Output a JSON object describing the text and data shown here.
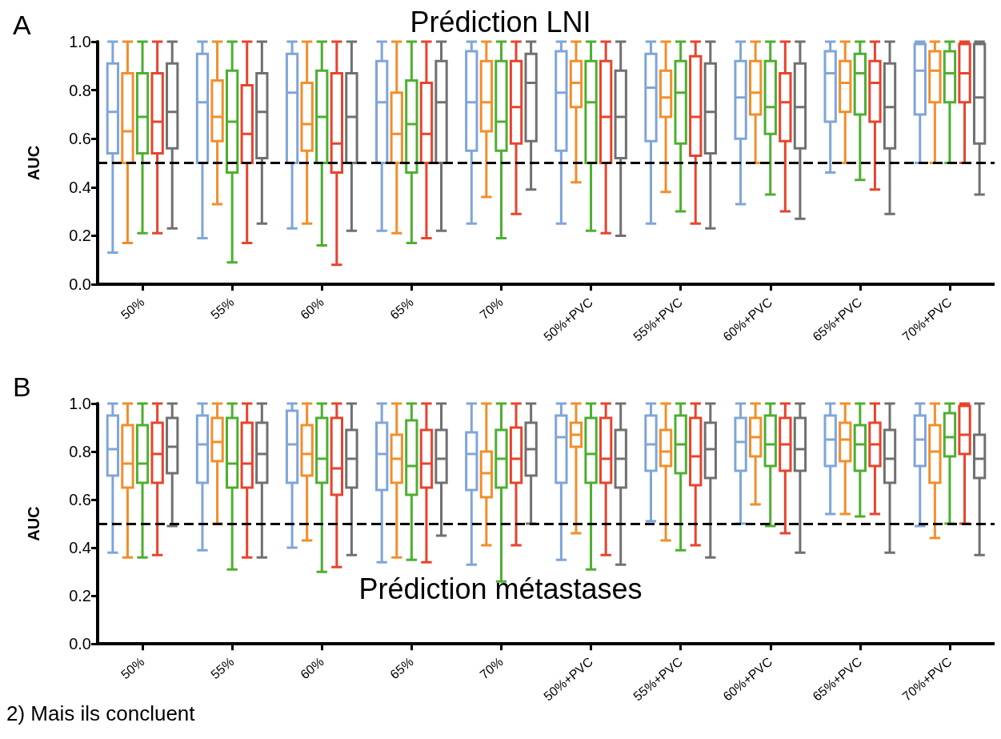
{
  "chart_data": [
    {
      "type": "box",
      "title": "Prédiction LNI",
      "ylabel": "AUC",
      "annotations": [
        "A"
      ],
      "categories": [
        "50%",
        "55%",
        "60%",
        "65%",
        "70%",
        "50%+PVC",
        "55%+PVC",
        "60%+PVC",
        "65%+PVC",
        "70%+PVC"
      ],
      "ylim": [
        0,
        1
      ],
      "yticks": [
        {
          "value": 0,
          "label": "0.0"
        },
        {
          "value": 0.2,
          "label": "0.2"
        },
        {
          "value": 0.4,
          "label": "0.4"
        },
        {
          "value": 0.6,
          "label": "0.6"
        },
        {
          "value": 0.8,
          "label": "0.8"
        },
        {
          "value": 1,
          "label": "1.0"
        }
      ],
      "grid": false,
      "ref_lines": [
        {
          "axis": "y",
          "value": 0.5,
          "color": "#000000",
          "line_style": "dashed"
        }
      ],
      "series": [
        {
          "color": "#7fa5d9",
          "boxes": [
            {
              "low": 0.13,
              "q1": 0.54,
              "median": 0.71,
              "q3": 0.91,
              "high": 1
            },
            {
              "low": 0.19,
              "q1": 0.5,
              "median": 0.75,
              "q3": 0.95,
              "high": 1
            },
            {
              "low": 0.23,
              "q1": 0.5,
              "median": 0.79,
              "q3": 0.95,
              "high": 1
            },
            {
              "low": 0.22,
              "q1": 0.5,
              "median": 0.75,
              "q3": 0.92,
              "high": 1
            },
            {
              "low": 0.25,
              "q1": 0.55,
              "median": 0.75,
              "q3": 0.96,
              "high": 1
            },
            {
              "low": 0.25,
              "q1": 0.55,
              "median": 0.79,
              "q3": 0.96,
              "high": 1
            },
            {
              "low": 0.25,
              "q1": 0.59,
              "median": 0.81,
              "q3": 0.95,
              "high": 1
            },
            {
              "low": 0.33,
              "q1": 0.6,
              "median": 0.77,
              "q3": 0.92,
              "high": 1
            },
            {
              "low": 0.46,
              "q1": 0.67,
              "median": 0.87,
              "q3": 0.96,
              "high": 1
            },
            {
              "low": 0.5,
              "q1": 0.7,
              "median": 0.88,
              "q3": 0.99,
              "high": 1
            }
          ]
        },
        {
          "color": "#f28e2b",
          "boxes": [
            {
              "low": 0.17,
              "q1": 0.5,
              "median": 0.63,
              "q3": 0.87,
              "high": 1
            },
            {
              "low": 0.33,
              "q1": 0.59,
              "median": 0.69,
              "q3": 0.84,
              "high": 1
            },
            {
              "low": 0.25,
              "q1": 0.55,
              "median": 0.66,
              "q3": 0.83,
              "high": 1
            },
            {
              "low": 0.21,
              "q1": 0.5,
              "median": 0.62,
              "q3": 0.79,
              "high": 1
            },
            {
              "low": 0.36,
              "q1": 0.63,
              "median": 0.75,
              "q3": 0.92,
              "high": 1
            },
            {
              "low": 0.42,
              "q1": 0.73,
              "median": 0.83,
              "q3": 0.92,
              "high": 1
            },
            {
              "low": 0.38,
              "q1": 0.69,
              "median": 0.77,
              "q3": 0.88,
              "high": 1
            },
            {
              "low": 0.5,
              "q1": 0.7,
              "median": 0.79,
              "q3": 0.92,
              "high": 1
            },
            {
              "low": 0.5,
              "q1": 0.71,
              "median": 0.83,
              "q3": 0.92,
              "high": 1
            },
            {
              "low": 0.5,
              "q1": 0.75,
              "median": 0.88,
              "q3": 0.96,
              "high": 1
            }
          ]
        },
        {
          "color": "#4daf30",
          "boxes": [
            {
              "low": 0.21,
              "q1": 0.54,
              "median": 0.69,
              "q3": 0.87,
              "high": 1
            },
            {
              "low": 0.09,
              "q1": 0.46,
              "median": 0.67,
              "q3": 0.88,
              "high": 1
            },
            {
              "low": 0.16,
              "q1": 0.5,
              "median": 0.69,
              "q3": 0.88,
              "high": 1
            },
            {
              "low": 0.17,
              "q1": 0.46,
              "median": 0.66,
              "q3": 0.84,
              "high": 1
            },
            {
              "low": 0.19,
              "q1": 0.55,
              "median": 0.67,
              "q3": 0.92,
              "high": 1
            },
            {
              "low": 0.22,
              "q1": 0.5,
              "median": 0.75,
              "q3": 0.92,
              "high": 1
            },
            {
              "low": 0.3,
              "q1": 0.58,
              "median": 0.79,
              "q3": 0.92,
              "high": 1
            },
            {
              "low": 0.37,
              "q1": 0.62,
              "median": 0.73,
              "q3": 0.92,
              "high": 1
            },
            {
              "low": 0.43,
              "q1": 0.7,
              "median": 0.87,
              "q3": 0.95,
              "high": 1
            },
            {
              "low": 0.5,
              "q1": 0.75,
              "median": 0.87,
              "q3": 0.96,
              "high": 1
            }
          ]
        },
        {
          "color": "#e8432d",
          "boxes": [
            {
              "low": 0.21,
              "q1": 0.54,
              "median": 0.67,
              "q3": 0.87,
              "high": 1
            },
            {
              "low": 0.17,
              "q1": 0.5,
              "median": 0.62,
              "q3": 0.82,
              "high": 1
            },
            {
              "low": 0.08,
              "q1": 0.46,
              "median": 0.58,
              "q3": 0.87,
              "high": 1
            },
            {
              "low": 0.19,
              "q1": 0.5,
              "median": 0.62,
              "q3": 0.83,
              "high": 1
            },
            {
              "low": 0.29,
              "q1": 0.58,
              "median": 0.73,
              "q3": 0.92,
              "high": 1
            },
            {
              "low": 0.21,
              "q1": 0.5,
              "median": 0.69,
              "q3": 0.92,
              "high": 1
            },
            {
              "low": 0.25,
              "q1": 0.53,
              "median": 0.69,
              "q3": 0.94,
              "high": 1
            },
            {
              "low": 0.3,
              "q1": 0.59,
              "median": 0.75,
              "q3": 0.87,
              "high": 1
            },
            {
              "low": 0.39,
              "q1": 0.67,
              "median": 0.83,
              "q3": 0.92,
              "high": 1
            },
            {
              "low": 0.5,
              "q1": 0.75,
              "median": 0.87,
              "q3": 0.99,
              "high": 1
            }
          ]
        },
        {
          "color": "#707070",
          "boxes": [
            {
              "low": 0.23,
              "q1": 0.56,
              "median": 0.71,
              "q3": 0.91,
              "high": 1
            },
            {
              "low": 0.25,
              "q1": 0.52,
              "median": 0.71,
              "q3": 0.87,
              "high": 1
            },
            {
              "low": 0.22,
              "q1": 0.5,
              "median": 0.69,
              "q3": 0.87,
              "high": 1
            },
            {
              "low": 0.22,
              "q1": 0.5,
              "median": 0.75,
              "q3": 0.92,
              "high": 1
            },
            {
              "low": 0.39,
              "q1": 0.59,
              "median": 0.83,
              "q3": 0.95,
              "high": 1
            },
            {
              "low": 0.2,
              "q1": 0.52,
              "median": 0.69,
              "q3": 0.88,
              "high": 1
            },
            {
              "low": 0.23,
              "q1": 0.54,
              "median": 0.71,
              "q3": 0.91,
              "high": 1
            },
            {
              "low": 0.27,
              "q1": 0.56,
              "median": 0.73,
              "q3": 0.91,
              "high": 1
            },
            {
              "low": 0.29,
              "q1": 0.56,
              "median": 0.73,
              "q3": 0.91,
              "high": 1
            },
            {
              "low": 0.37,
              "q1": 0.58,
              "median": 0.77,
              "q3": 0.99,
              "high": 1
            }
          ]
        }
      ]
    },
    {
      "type": "box",
      "title": "Prédiction métastases",
      "ylabel": "AUC",
      "annotations": [
        "B",
        "2) Mais ils concluent"
      ],
      "categories": [
        "50%",
        "55%",
        "60%",
        "65%",
        "70%",
        "50%+PVC",
        "55%+PVC",
        "60%+PVC",
        "65%+PVC",
        "70%+PVC"
      ],
      "ylim": [
        0,
        1
      ],
      "yticks": [
        {
          "value": 0,
          "label": "0.0"
        },
        {
          "value": 0.2,
          "label": "0.2"
        },
        {
          "value": 0.4,
          "label": "0.4"
        },
        {
          "value": 0.6,
          "label": "0.6"
        },
        {
          "value": 0.8,
          "label": "0.8"
        },
        {
          "value": 1,
          "label": "1.0"
        }
      ],
      "grid": false,
      "ref_lines": [
        {
          "axis": "y",
          "value": 0.5,
          "color": "#000000",
          "line_style": "dashed"
        }
      ],
      "series": [
        {
          "color": "#7fa5d9",
          "boxes": [
            {
              "low": 0.38,
              "q1": 0.7,
              "median": 0.81,
              "q3": 0.95,
              "high": 1
            },
            {
              "low": 0.39,
              "q1": 0.67,
              "median": 0.83,
              "q3": 0.95,
              "high": 1
            },
            {
              "low": 0.4,
              "q1": 0.67,
              "median": 0.83,
              "q3": 0.97,
              "high": 1
            },
            {
              "low": 0.34,
              "q1": 0.64,
              "median": 0.79,
              "q3": 0.92,
              "high": 1
            },
            {
              "low": 0.33,
              "q1": 0.64,
              "median": 0.79,
              "q3": 0.88,
              "high": 1
            },
            {
              "low": 0.35,
              "q1": 0.67,
              "median": 0.86,
              "q3": 0.95,
              "high": 1
            },
            {
              "low": 0.51,
              "q1": 0.72,
              "median": 0.83,
              "q3": 0.95,
              "high": 1
            },
            {
              "low": 0.5,
              "q1": 0.72,
              "median": 0.84,
              "q3": 0.94,
              "high": 1
            },
            {
              "low": 0.54,
              "q1": 0.74,
              "median": 0.85,
              "q3": 0.95,
              "high": 1
            },
            {
              "low": 0.49,
              "q1": 0.74,
              "median": 0.85,
              "q3": 0.95,
              "high": 1
            }
          ]
        },
        {
          "color": "#f28e2b",
          "boxes": [
            {
              "low": 0.36,
              "q1": 0.65,
              "median": 0.75,
              "q3": 0.91,
              "high": 1
            },
            {
              "low": 0.5,
              "q1": 0.76,
              "median": 0.84,
              "q3": 0.94,
              "high": 1
            },
            {
              "low": 0.43,
              "q1": 0.7,
              "median": 0.79,
              "q3": 0.91,
              "high": 1
            },
            {
              "low": 0.36,
              "q1": 0.67,
              "median": 0.77,
              "q3": 0.87,
              "high": 1
            },
            {
              "low": 0.41,
              "q1": 0.61,
              "median": 0.71,
              "q3": 0.8,
              "high": 1
            },
            {
              "low": 0.46,
              "q1": 0.82,
              "median": 0.87,
              "q3": 0.92,
              "high": 1
            },
            {
              "low": 0.43,
              "q1": 0.74,
              "median": 0.8,
              "q3": 0.89,
              "high": 1
            },
            {
              "low": 0.58,
              "q1": 0.78,
              "median": 0.86,
              "q3": 0.94,
              "high": 1
            },
            {
              "low": 0.54,
              "q1": 0.76,
              "median": 0.85,
              "q3": 0.92,
              "high": 1
            },
            {
              "low": 0.44,
              "q1": 0.67,
              "median": 0.8,
              "q3": 0.91,
              "high": 1
            }
          ]
        },
        {
          "color": "#4daf30",
          "boxes": [
            {
              "low": 0.36,
              "q1": 0.67,
              "median": 0.75,
              "q3": 0.91,
              "high": 1
            },
            {
              "low": 0.31,
              "q1": 0.65,
              "median": 0.75,
              "q3": 0.94,
              "high": 1
            },
            {
              "low": 0.3,
              "q1": 0.67,
              "median": 0.77,
              "q3": 0.94,
              "high": 1
            },
            {
              "low": 0.35,
              "q1": 0.62,
              "median": 0.74,
              "q3": 0.93,
              "high": 1
            },
            {
              "low": 0.26,
              "q1": 0.65,
              "median": 0.77,
              "q3": 0.89,
              "high": 1
            },
            {
              "low": 0.31,
              "q1": 0.67,
              "median": 0.79,
              "q3": 0.94,
              "high": 1
            },
            {
              "low": 0.39,
              "q1": 0.71,
              "median": 0.83,
              "q3": 0.95,
              "high": 1
            },
            {
              "low": 0.49,
              "q1": 0.74,
              "median": 0.83,
              "q3": 0.95,
              "high": 1
            },
            {
              "low": 0.53,
              "q1": 0.72,
              "median": 0.83,
              "q3": 0.91,
              "high": 1
            },
            {
              "low": 0.5,
              "q1": 0.78,
              "median": 0.86,
              "q3": 0.96,
              "high": 1
            }
          ]
        },
        {
          "color": "#e8432d",
          "boxes": [
            {
              "low": 0.37,
              "q1": 0.67,
              "median": 0.79,
              "q3": 0.92,
              "high": 1
            },
            {
              "low": 0.36,
              "q1": 0.65,
              "median": 0.75,
              "q3": 0.92,
              "high": 1
            },
            {
              "low": 0.32,
              "q1": 0.62,
              "median": 0.73,
              "q3": 0.94,
              "high": 1
            },
            {
              "low": 0.34,
              "q1": 0.65,
              "median": 0.75,
              "q3": 0.89,
              "high": 1
            },
            {
              "low": 0.41,
              "q1": 0.67,
              "median": 0.77,
              "q3": 0.9,
              "high": 1
            },
            {
              "low": 0.37,
              "q1": 0.67,
              "median": 0.77,
              "q3": 0.94,
              "high": 1
            },
            {
              "low": 0.41,
              "q1": 0.66,
              "median": 0.78,
              "q3": 0.94,
              "high": 1
            },
            {
              "low": 0.46,
              "q1": 0.72,
              "median": 0.83,
              "q3": 0.94,
              "high": 1
            },
            {
              "low": 0.54,
              "q1": 0.74,
              "median": 0.83,
              "q3": 0.92,
              "high": 1
            },
            {
              "low": 0.5,
              "q1": 0.79,
              "median": 0.87,
              "q3": 0.99,
              "high": 1
            }
          ]
        },
        {
          "color": "#707070",
          "boxes": [
            {
              "low": 0.49,
              "q1": 0.71,
              "median": 0.82,
              "q3": 0.94,
              "high": 1
            },
            {
              "low": 0.36,
              "q1": 0.67,
              "median": 0.79,
              "q3": 0.92,
              "high": 1
            },
            {
              "low": 0.37,
              "q1": 0.65,
              "median": 0.77,
              "q3": 0.89,
              "high": 1
            },
            {
              "low": 0.45,
              "q1": 0.67,
              "median": 0.77,
              "q3": 0.89,
              "high": 1
            },
            {
              "low": 0.5,
              "q1": 0.7,
              "median": 0.81,
              "q3": 0.92,
              "high": 1
            },
            {
              "low": 0.33,
              "q1": 0.65,
              "median": 0.77,
              "q3": 0.89,
              "high": 1
            },
            {
              "low": 0.36,
              "q1": 0.69,
              "median": 0.81,
              "q3": 0.92,
              "high": 1
            },
            {
              "low": 0.38,
              "q1": 0.72,
              "median": 0.81,
              "q3": 0.94,
              "high": 1
            },
            {
              "low": 0.38,
              "q1": 0.67,
              "median": 0.77,
              "q3": 0.89,
              "high": 1
            },
            {
              "low": 0.37,
              "q1": 0.69,
              "median": 0.77,
              "q3": 0.87,
              "high": 1
            }
          ]
        }
      ]
    }
  ]
}
